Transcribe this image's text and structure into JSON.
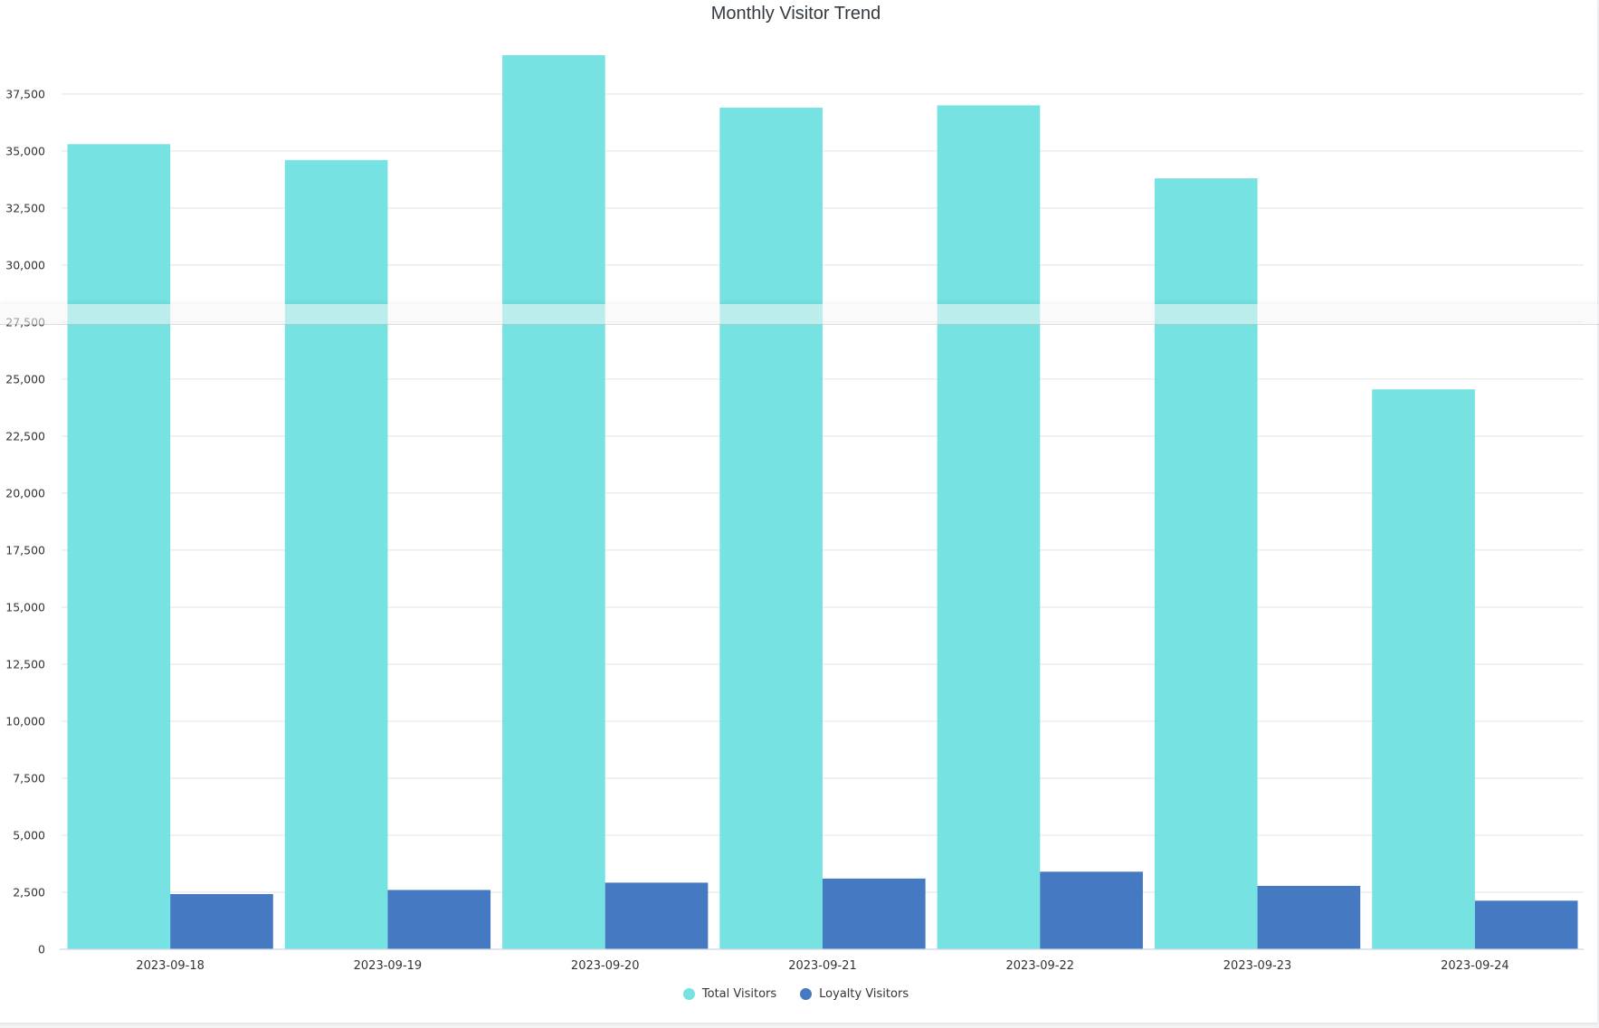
{
  "chart_data": {
    "type": "bar",
    "title": "Monthly Visitor Trend",
    "xlabel": "",
    "ylabel": "",
    "categories": [
      "2023-09-18",
      "2023-09-19",
      "2023-09-20",
      "2023-09-21",
      "2023-09-22",
      "2023-09-23",
      "2023-09-24"
    ],
    "series": [
      {
        "name": "Total Visitors",
        "color": "#76e2e1",
        "values": [
          35300,
          34600,
          39200,
          36900,
          37000,
          33800,
          24550
        ]
      },
      {
        "name": "Loyalty Visitors",
        "color": "#4579c1",
        "values": [
          2420,
          2600,
          2920,
          3100,
          3400,
          2780,
          2130
        ]
      }
    ],
    "ylim": [
      0,
      39200
    ],
    "yticks": [
      0,
      2500,
      5000,
      7500,
      10000,
      12500,
      15000,
      17500,
      20000,
      22500,
      25000,
      27500,
      30000,
      32500,
      35000,
      37500
    ],
    "grid": true,
    "legend_position": "bottom-center"
  }
}
